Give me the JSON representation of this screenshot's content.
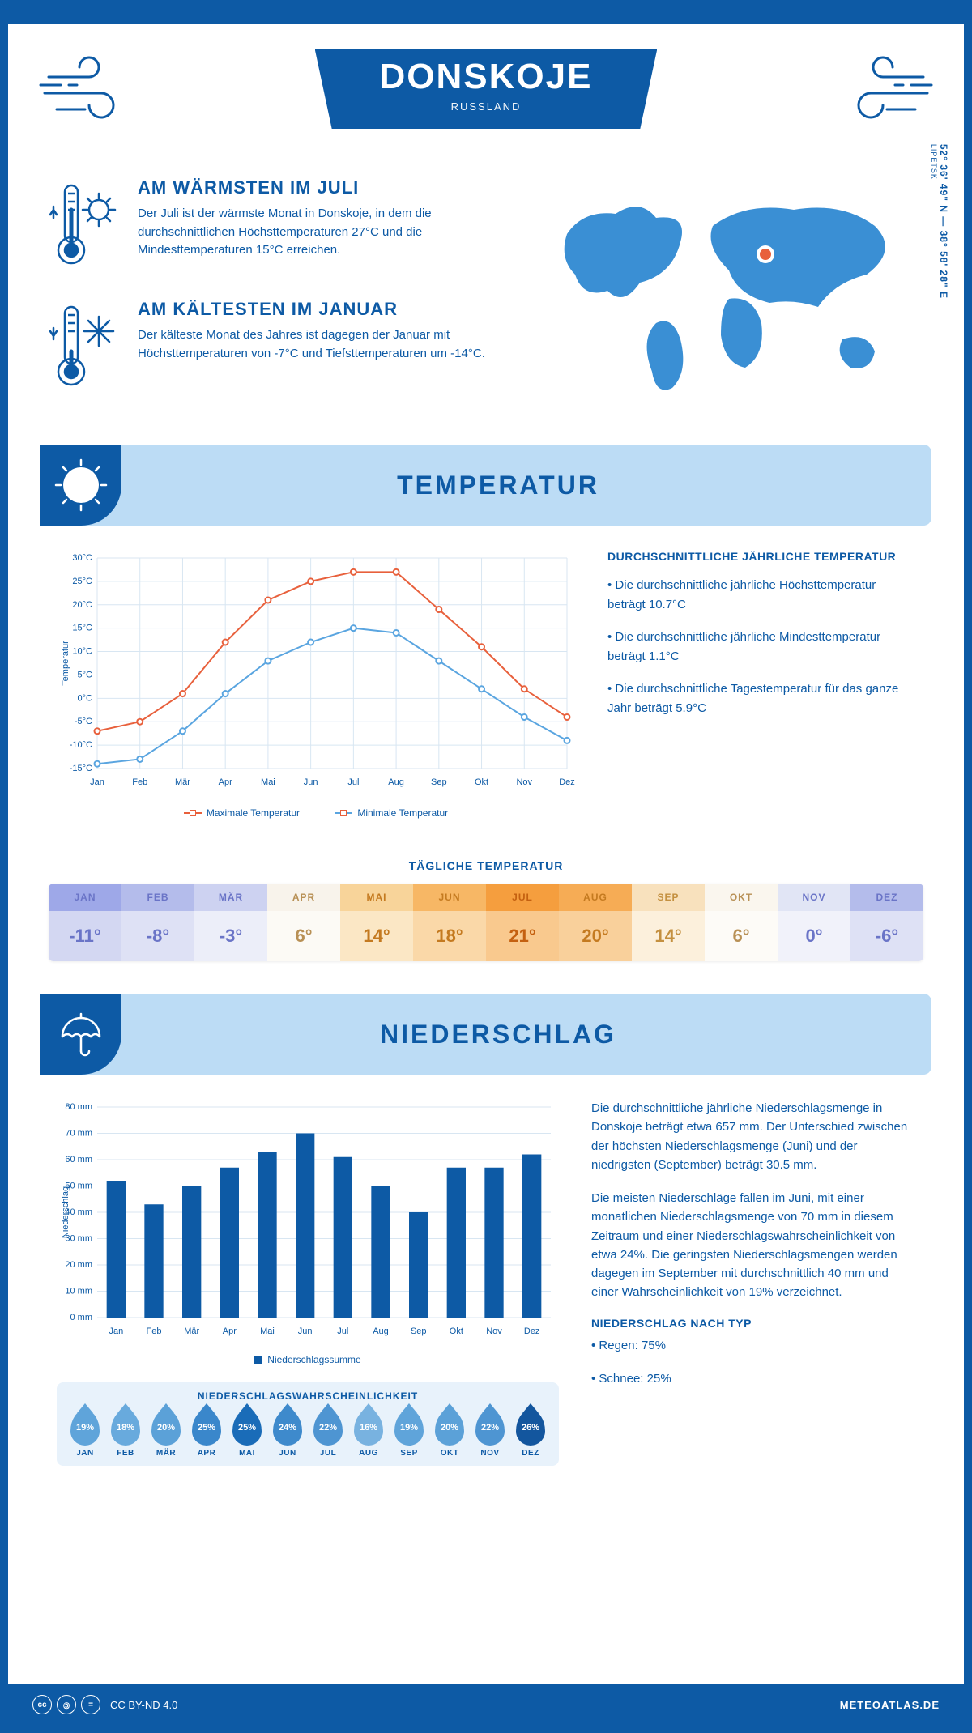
{
  "header": {
    "title": "DONSKOJE",
    "subtitle": "RUSSLAND"
  },
  "coords": {
    "main": "52° 36' 49\" N — 38° 58' 28\" E",
    "sub": "LIPETSK"
  },
  "facts": {
    "warm": {
      "title": "AM WÄRMSTEN IM JULI",
      "text": "Der Juli ist der wärmste Monat in Donskoje, in dem die durchschnittlichen Höchsttemperaturen 27°C und die Mindesttemperaturen 15°C erreichen."
    },
    "cold": {
      "title": "AM KÄLTESTEN IM JANUAR",
      "text": "Der kälteste Monat des Jahres ist dagegen der Januar mit Höchsttemperaturen von -7°C und Tiefsttemperaturen um -14°C."
    }
  },
  "sections": {
    "temp": "TEMPERATUR",
    "precip": "NIEDERSCHLAG"
  },
  "temp_chart": {
    "months": [
      "Jan",
      "Feb",
      "Mär",
      "Apr",
      "Mai",
      "Jun",
      "Jul",
      "Aug",
      "Sep",
      "Okt",
      "Nov",
      "Dez"
    ],
    "max": [
      -7,
      -5,
      1,
      12,
      21,
      25,
      27,
      27,
      19,
      11,
      2,
      -4
    ],
    "min": [
      -14,
      -13,
      -7,
      1,
      8,
      12,
      15,
      14,
      8,
      2,
      -4,
      -9
    ],
    "ylim": [
      -15,
      30
    ],
    "ytick_step": 5,
    "max_color": "#e8603c",
    "min_color": "#5aa5e0",
    "grid_color": "#d8e6f2",
    "ylabel": "Temperatur",
    "legend_max": "Maximale Temperatur",
    "legend_min": "Minimale Temperatur"
  },
  "temp_info": {
    "title": "DURCHSCHNITTLICHE JÄHRLICHE TEMPERATUR",
    "p1": "• Die durchschnittliche jährliche Höchsttemperatur beträgt 10.7°C",
    "p2": "• Die durchschnittliche jährliche Mindesttemperatur beträgt 1.1°C",
    "p3": "• Die durchschnittliche Tagestemperatur für das ganze Jahr beträgt 5.9°C"
  },
  "daily": {
    "title": "TÄGLICHE TEMPERATUR",
    "months": [
      "JAN",
      "FEB",
      "MÄR",
      "APR",
      "MAI",
      "JUN",
      "JUL",
      "AUG",
      "SEP",
      "OKT",
      "NOV",
      "DEZ"
    ],
    "values": [
      "-11°",
      "-8°",
      "-3°",
      "6°",
      "14°",
      "18°",
      "21°",
      "20°",
      "14°",
      "6°",
      "0°",
      "-6°"
    ],
    "head_colors": [
      "#9ea8e8",
      "#b4bceb",
      "#cdd2f1",
      "#f8f3eb",
      "#f8d49a",
      "#f7b765",
      "#f59e3e",
      "#f6ac55",
      "#f8e1bd",
      "#faf6ee",
      "#e1e5f5",
      "#b4bceb"
    ],
    "body_colors": [
      "#d3d7f2",
      "#dee1f5",
      "#eceef9",
      "#fcfaf5",
      "#fbe7c5",
      "#fad8a8",
      "#f9c98e",
      "#f9d09b",
      "#fcf0dc",
      "#fdfbf7",
      "#f1f2fa",
      "#dee1f5"
    ],
    "text_colors": [
      "#6a74c7",
      "#6a74c7",
      "#6a74c7",
      "#b89055",
      "#c47a20",
      "#c47a20",
      "#c46010",
      "#c47a20",
      "#c49040",
      "#b89055",
      "#6a74c7",
      "#6a74c7"
    ]
  },
  "precip_chart": {
    "months": [
      "Jan",
      "Feb",
      "Mär",
      "Apr",
      "Mai",
      "Jun",
      "Jul",
      "Aug",
      "Sep",
      "Okt",
      "Nov",
      "Dez"
    ],
    "values": [
      52,
      43,
      50,
      57,
      63,
      70,
      61,
      50,
      40,
      57,
      57,
      62
    ],
    "ylim": [
      0,
      80
    ],
    "ytick_step": 10,
    "bar_color": "#0d5aa5",
    "grid_color": "#d8e6f2",
    "ylabel": "Niederschlag",
    "legend": "Niederschlagssumme"
  },
  "precip_info": {
    "p1": "Die durchschnittliche jährliche Niederschlagsmenge in Donskoje beträgt etwa 657 mm. Der Unterschied zwischen der höchsten Niederschlagsmenge (Juni) und der niedrigsten (September) beträgt 30.5 mm.",
    "p2": "Die meisten Niederschläge fallen im Juni, mit einer monatlichen Niederschlagsmenge von 70 mm in diesem Zeitraum und einer Niederschlagswahrscheinlichkeit von etwa 24%. Die geringsten Niederschlagsmengen werden dagegen im September mit durchschnittlich 40 mm und einer Wahrscheinlichkeit von 19% verzeichnet.",
    "type_title": "NIEDERSCHLAG NACH TYP",
    "type1": "• Regen: 75%",
    "type2": "• Schnee: 25%"
  },
  "prob": {
    "title": "NIEDERSCHLAGSWAHRSCHEINLICHKEIT",
    "months": [
      "JAN",
      "FEB",
      "MÄR",
      "APR",
      "MAI",
      "JUN",
      "JUL",
      "AUG",
      "SEP",
      "OKT",
      "NOV",
      "DEZ"
    ],
    "values": [
      "19%",
      "18%",
      "20%",
      "25%",
      "25%",
      "24%",
      "22%",
      "16%",
      "19%",
      "20%",
      "22%",
      "26%"
    ],
    "colors": [
      "#5fa4da",
      "#68aadd",
      "#5ba1d8",
      "#3a87cb",
      "#1a6cb8",
      "#3e8acc",
      "#4e95d2",
      "#78b2e0",
      "#5fa4da",
      "#5ba1d8",
      "#4e95d2",
      "#13569e"
    ]
  },
  "footer": {
    "license": "CC BY-ND 4.0",
    "site": "METEOATLAS.DE"
  }
}
